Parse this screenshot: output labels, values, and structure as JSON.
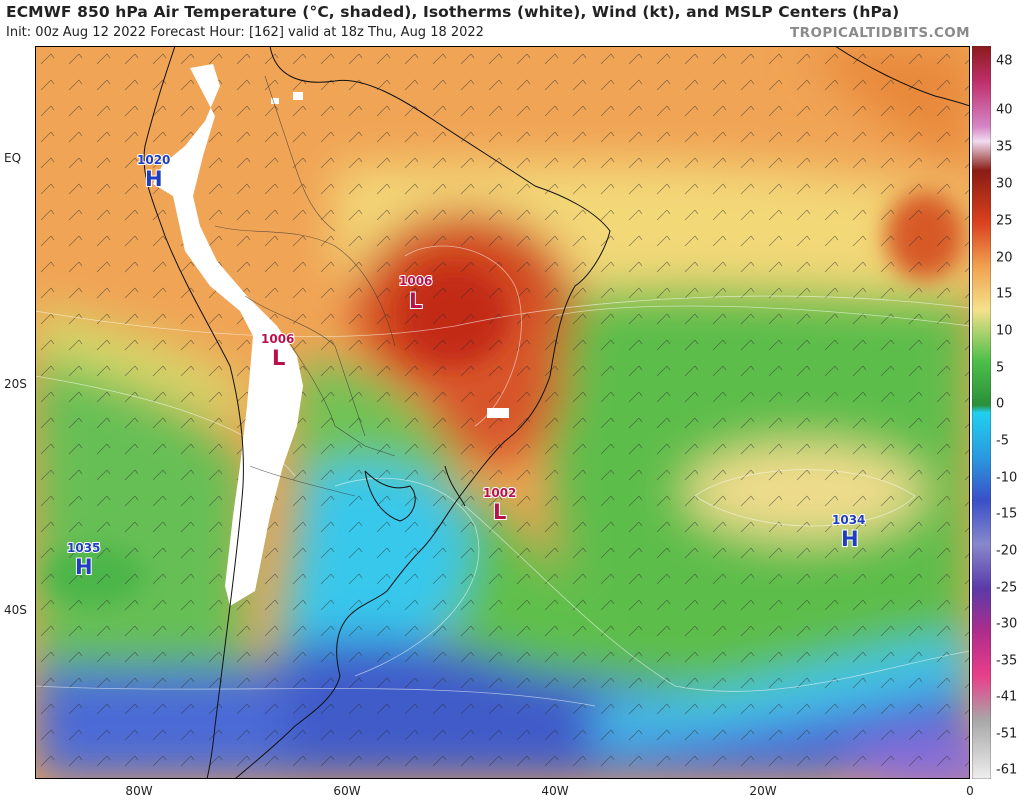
{
  "header": {
    "title": "ECMWF 850 hPa Air Temperature (°C, shaded), Isotherms (white), Wind (kt), and MSLP Centers (hPa)",
    "subtitle": "Init: 00z Aug 12 2022   Forecast Hour: [162]   valid at 18z Thu, Aug 18 2022",
    "brand": "TROPICALTIDBITS.COM"
  },
  "axes": {
    "lat_labels": [
      "EQ",
      "20S",
      "40S"
    ],
    "lon_labels": [
      "80W",
      "60W",
      "40W",
      "20W",
      "0"
    ]
  },
  "colorbar": {
    "labels": [
      "48",
      "40",
      "35",
      "30",
      "25",
      "20",
      "15",
      "10",
      "5",
      "0",
      "-5",
      "-10",
      "-15",
      "-20",
      "-25",
      "-30",
      "-35",
      "-41",
      "-51",
      "-61"
    ]
  },
  "pressure_centers": [
    {
      "type": "H",
      "value": "1020",
      "color": "#1f3fbf"
    },
    {
      "type": "L",
      "value": "1006",
      "color": "#b8124a"
    },
    {
      "type": "L",
      "value": "1006",
      "color": "#b8124a"
    },
    {
      "type": "L",
      "value": "1002",
      "color": "#b8124a"
    },
    {
      "type": "H",
      "value": "1034",
      "color": "#1f3fbf"
    },
    {
      "type": "H",
      "value": "1035",
      "color": "#1f3fbf"
    }
  ],
  "colors": {
    "hot": "#c8341c",
    "warm": "#e8843a",
    "mild": "#f2d57a",
    "cool": "#4fb84a",
    "cold": "#33c7ee",
    "frigid": "#4a64d8",
    "terrain_mask": "#ffffff"
  }
}
